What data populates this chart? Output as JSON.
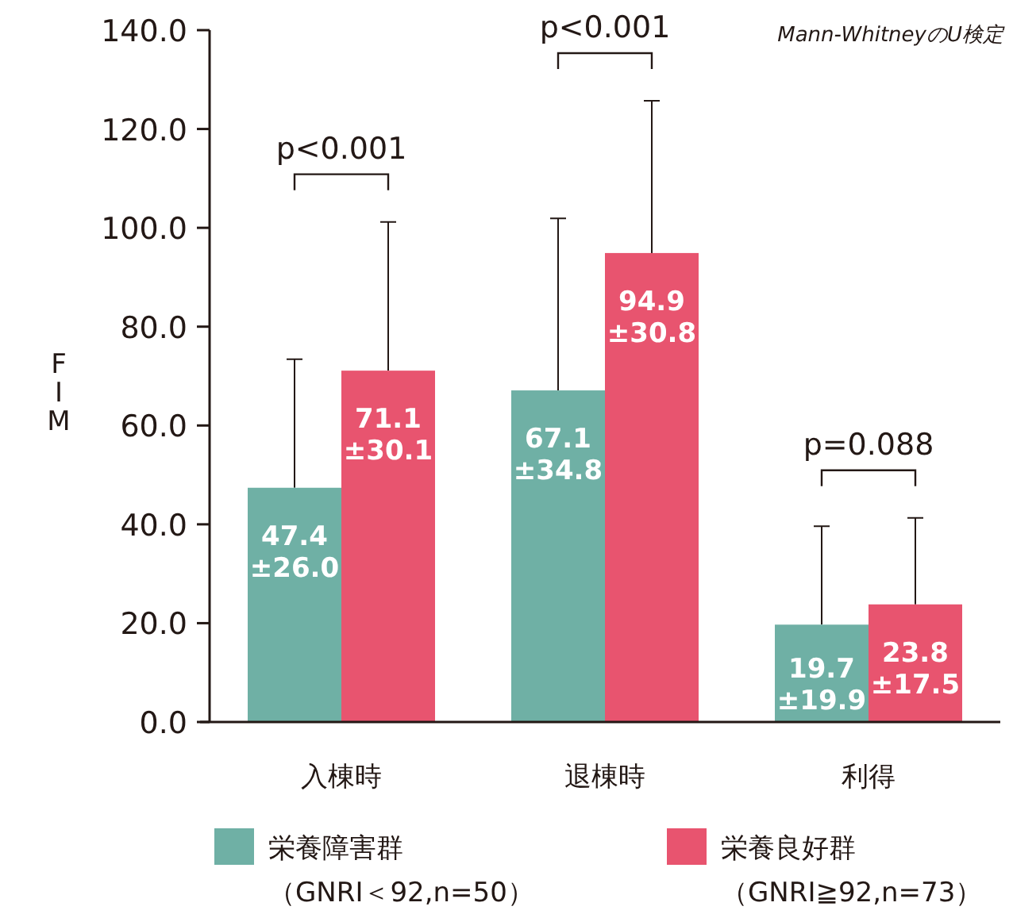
{
  "chart_data": {
    "type": "bar",
    "ylabel": "FIM",
    "categories": [
      "入棟時",
      "退棟時",
      "利得"
    ],
    "series": [
      {
        "name": "栄養障害群（GNRI＜92,n=50）",
        "color": "#6fb0a5",
        "values": [
          47.4,
          67.1,
          19.7
        ],
        "value_labels": [
          "47.4\n±26.0",
          "67.1\n±34.8",
          "19.7\n±19.9"
        ],
        "errors": [
          [
            47.4,
            73.4
          ],
          [
            67.1,
            101.9
          ],
          [
            19.7,
            39.6
          ]
        ]
      },
      {
        "name": "栄養良好群（GNRI≧92,n=73）",
        "color": "#e8546f",
        "values": [
          71.1,
          94.9,
          23.8
        ],
        "value_labels": [
          "71.1\n±30.1",
          "94.9\n±30.8",
          "23.8\n±17.5"
        ],
        "errors": [
          [
            71.1,
            101.2
          ],
          [
            94.9,
            125.7
          ],
          [
            23.8,
            41.3
          ]
        ]
      }
    ],
    "ylim": [
      0,
      140
    ],
    "yticks": [
      {
        "value": 0,
        "label": "0.0"
      },
      {
        "value": 20,
        "label": "20.0"
      },
      {
        "value": 40,
        "label": "40.0"
      },
      {
        "value": 60,
        "label": "60.0"
      },
      {
        "value": 80,
        "label": "80.0"
      },
      {
        "value": 100,
        "label": "100.0"
      },
      {
        "value": 120,
        "label": "120.0"
      },
      {
        "value": 140,
        "label": "140.0"
      }
    ],
    "annotations": [
      "p<0.001",
      "p<0.001",
      "p=0.088",
      "Mann-WhitneyのU検定"
    ],
    "legend": "bottom"
  }
}
